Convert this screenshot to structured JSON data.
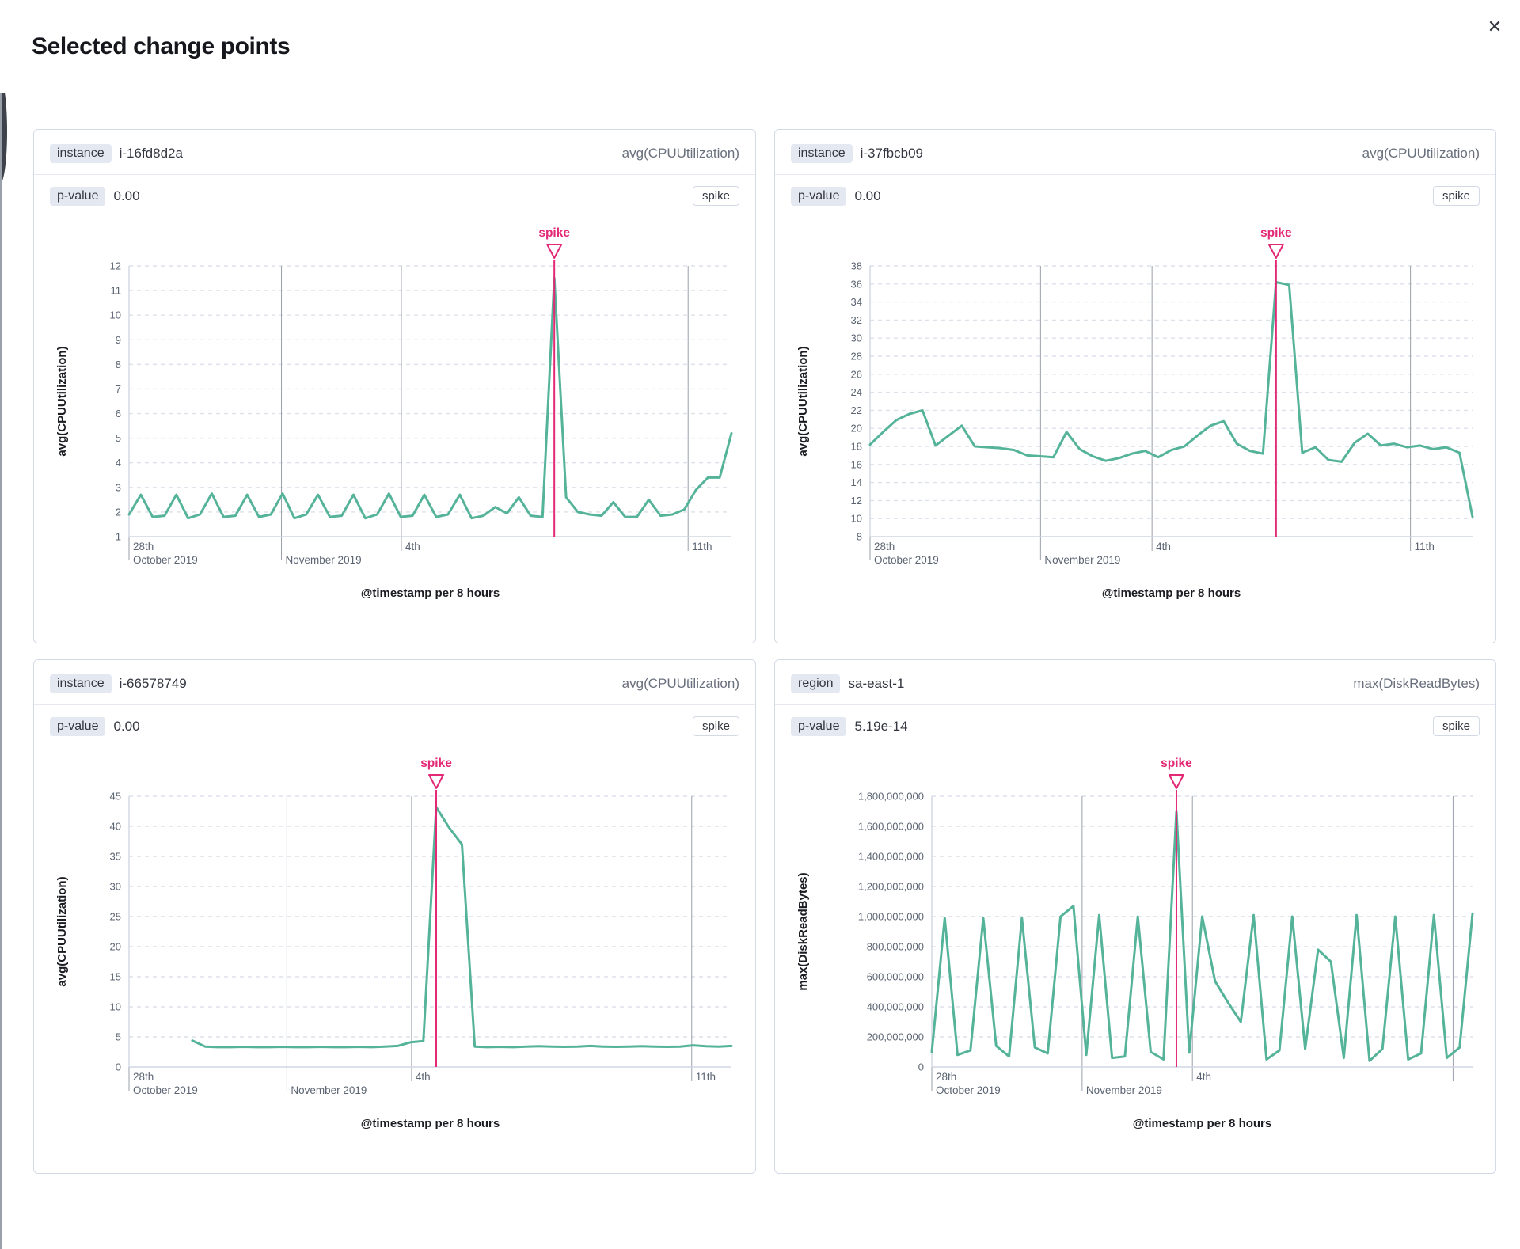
{
  "modal": {
    "title": "Selected change points",
    "close_icon": "✕"
  },
  "colors": {
    "series_line": "#54b399",
    "annotation": "#e32876",
    "badge_bg": "#e4e8f1",
    "panel_border": "#d3dae6",
    "grid_dashed": "#dde1ea",
    "grid_solid": "#9aa0ab",
    "axis_line": "#d0d6e0",
    "tick_text": "#5b6472",
    "axis_title_text": "#1a1c21"
  },
  "panels": [
    {
      "key_label": "instance",
      "key_value": "i-16fd8d2a",
      "metric": "avg(CPUUtilization)",
      "p_label": "p-value",
      "p_value": "0.00",
      "change_point_badge": "spike",
      "chart_data": {
        "type": "line",
        "title": "",
        "xlabel": "@timestamp per 8 hours",
        "ylabel": "avg(CPUUtilization)",
        "ylim": [
          1,
          12
        ],
        "ystep": 1,
        "yformat": "plain",
        "grid": true,
        "annotation": {
          "label": "spike",
          "at": "max"
        },
        "x_ticks": [
          {
            "frac": 0,
            "row1": "28th",
            "row2": "October 2019",
            "line": false
          },
          {
            "frac": 0.253,
            "row1": "",
            "row2": "November 2019",
            "line": true
          },
          {
            "frac": 0.452,
            "row1": "4th",
            "row2": "",
            "line": true
          },
          {
            "frac": 0.928,
            "row1": "11th",
            "row2": "",
            "line": true
          }
        ],
        "x_start": 0,
        "values": [
          1.9,
          2.7,
          1.8,
          1.85,
          2.7,
          1.75,
          1.9,
          2.75,
          1.8,
          1.85,
          2.7,
          1.8,
          1.9,
          2.75,
          1.75,
          1.9,
          2.7,
          1.8,
          1.85,
          2.7,
          1.75,
          1.9,
          2.75,
          1.8,
          1.85,
          2.7,
          1.8,
          1.9,
          2.7,
          1.75,
          1.85,
          2.2,
          1.95,
          2.6,
          1.85,
          1.8,
          11.5,
          2.6,
          2.0,
          1.9,
          1.85,
          2.4,
          1.8,
          1.8,
          2.5,
          1.85,
          1.9,
          2.1,
          2.9,
          3.4,
          3.4,
          5.2
        ]
      }
    },
    {
      "key_label": "instance",
      "key_value": "i-37fbcb09",
      "metric": "avg(CPUUtilization)",
      "p_label": "p-value",
      "p_value": "0.00",
      "change_point_badge": "spike",
      "chart_data": {
        "type": "line",
        "title": "",
        "xlabel": "@timestamp per 8 hours",
        "ylabel": "avg(CPUUtilization)",
        "ylim": [
          8,
          38
        ],
        "ystep": 2,
        "yformat": "plain",
        "grid": true,
        "annotation": {
          "label": "spike",
          "at": "max"
        },
        "x_ticks": [
          {
            "frac": 0,
            "row1": "28th",
            "row2": "October 2019",
            "line": false
          },
          {
            "frac": 0.283,
            "row1": "",
            "row2": "November 2019",
            "line": true
          },
          {
            "frac": 0.468,
            "row1": "4th",
            "row2": "",
            "line": true
          },
          {
            "frac": 0.897,
            "row1": "11th",
            "row2": "",
            "line": true
          }
        ],
        "x_start": 0,
        "values": [
          18.2,
          19.6,
          20.9,
          21.6,
          22.0,
          18.1,
          19.2,
          20.3,
          18.0,
          17.9,
          17.8,
          17.6,
          17.0,
          16.9,
          16.8,
          19.6,
          17.7,
          16.9,
          16.4,
          16.7,
          17.2,
          17.5,
          16.8,
          17.6,
          18.0,
          19.2,
          20.3,
          20.8,
          18.3,
          17.5,
          17.2,
          36.2,
          35.9,
          17.3,
          17.9,
          16.5,
          16.3,
          18.4,
          19.4,
          18.1,
          18.3,
          17.9,
          18.1,
          17.7,
          17.9,
          17.3,
          10.2
        ]
      }
    },
    {
      "key_label": "instance",
      "key_value": "i-66578749",
      "metric": "avg(CPUUtilization)",
      "p_label": "p-value",
      "p_value": "0.00",
      "change_point_badge": "spike",
      "chart_data": {
        "type": "line",
        "title": "",
        "xlabel": "@timestamp per 8 hours",
        "ylabel": "avg(CPUUtilization)",
        "ylim": [
          0,
          45
        ],
        "ystep": 5,
        "yformat": "plain",
        "grid": true,
        "annotation": {
          "label": "spike",
          "at": "max"
        },
        "x_ticks": [
          {
            "frac": 0,
            "row1": "28th",
            "row2": "October 2019",
            "line": false
          },
          {
            "frac": 0.262,
            "row1": "",
            "row2": "November 2019",
            "line": true
          },
          {
            "frac": 0.469,
            "row1": "4th",
            "row2": "",
            "line": true
          },
          {
            "frac": 0.934,
            "row1": "11th",
            "row2": "",
            "line": true
          }
        ],
        "x_start": 0.105,
        "values": [
          4.4,
          3.4,
          3.3,
          3.3,
          3.35,
          3.3,
          3.3,
          3.35,
          3.3,
          3.3,
          3.35,
          3.3,
          3.3,
          3.35,
          3.3,
          3.4,
          3.5,
          4.1,
          4.3,
          43.2,
          39.8,
          37.0,
          3.4,
          3.3,
          3.35,
          3.3,
          3.4,
          3.45,
          3.4,
          3.35,
          3.4,
          3.5,
          3.4,
          3.35,
          3.4,
          3.45,
          3.4,
          3.35,
          3.4,
          3.6,
          3.45,
          3.4,
          3.5
        ]
      }
    },
    {
      "key_label": "region",
      "key_value": "sa-east-1",
      "metric": "max(DiskReadBytes)",
      "p_label": "p-value",
      "p_value": "5.19e-14",
      "change_point_badge": "spike",
      "chart_data": {
        "type": "line",
        "title": "",
        "xlabel": "@timestamp per 8 hours",
        "ylabel": "max(DiskReadBytes)",
        "ylim": [
          0,
          1800000000
        ],
        "ystep": 200000000,
        "yformat": "thousands",
        "grid": true,
        "annotation": {
          "label": "spike",
          "at": "max"
        },
        "x_ticks": [
          {
            "frac": 0,
            "row1": "28th",
            "row2": "October 2019",
            "line": false
          },
          {
            "frac": 0.278,
            "row1": "",
            "row2": "November 2019",
            "line": true
          },
          {
            "frac": 0.482,
            "row1": "4th",
            "row2": "",
            "line": true
          },
          {
            "frac": 0.964,
            "row1": "",
            "row2": "",
            "line": true
          }
        ],
        "x_start": 0,
        "values": [
          100000000,
          990000000,
          80000000,
          110000000,
          990000000,
          140000000,
          70000000,
          990000000,
          130000000,
          90000000,
          1000000000,
          1070000000,
          80000000,
          1010000000,
          60000000,
          70000000,
          1000000000,
          100000000,
          50000000,
          1700000000,
          95000000,
          1000000000,
          570000000,
          430000000,
          300000000,
          1010000000,
          50000000,
          110000000,
          1000000000,
          120000000,
          780000000,
          700000000,
          60000000,
          1010000000,
          40000000,
          120000000,
          1000000000,
          50000000,
          90000000,
          1010000000,
          60000000,
          130000000,
          1020000000
        ]
      }
    }
  ]
}
